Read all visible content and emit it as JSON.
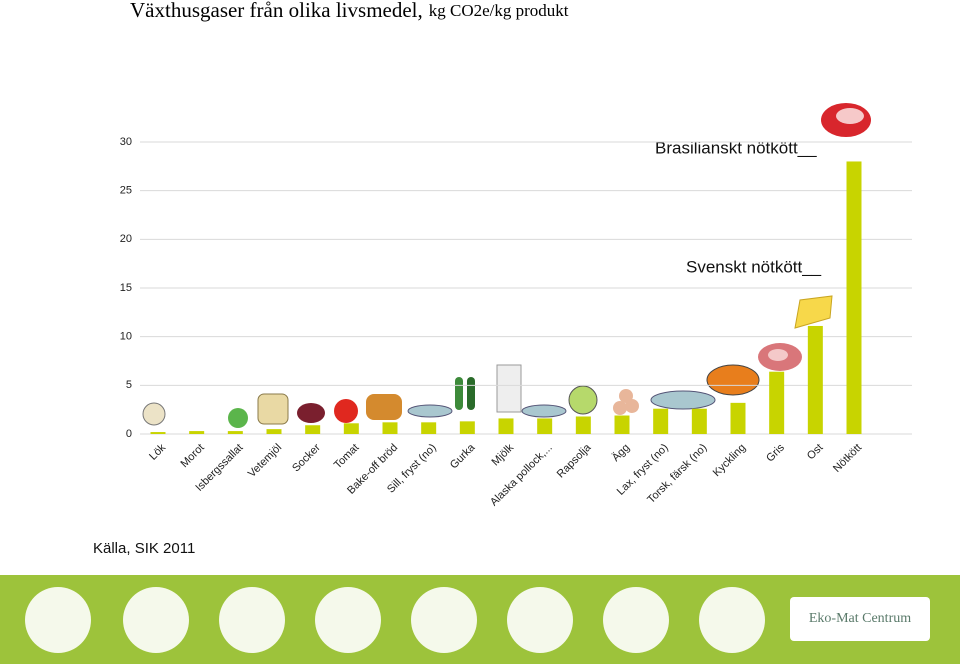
{
  "chart_data": {
    "type": "bar",
    "title": "Växthusgaser från olika livsmedel,",
    "subtitle": "kg CO2e/kg produkt",
    "categories": [
      "Lök",
      "Morot",
      "Isbergssallat",
      "Vetemjöl",
      "Socker",
      "Tomat",
      "Bake-off bröd",
      "Sill, fryst (no)",
      "Gurka",
      "Mjölk",
      "Alaska pollock,...",
      "Rapsolja",
      "Ägg",
      "Lax, fryst (no)",
      "Torsk, färsk (no)",
      "Kyckling",
      "Gris",
      "Ost",
      "Nötkött"
    ],
    "values": [
      0.2,
      0.3,
      0.3,
      0.5,
      0.9,
      1.1,
      1.2,
      1.2,
      1.3,
      1.6,
      1.6,
      1.8,
      1.9,
      2.6,
      2.6,
      3.2,
      6.4,
      11.1,
      28
    ],
    "color": "#c8d400",
    "ylim": [
      0,
      30
    ],
    "yticks": [
      0,
      5,
      10,
      15,
      20,
      25,
      30
    ],
    "grid": true,
    "annotations": [
      "Brasilianskt nötkött__",
      "Svenskt nötkött__"
    ],
    "source": "Källa, SIK 2011"
  },
  "footer": {
    "logo": "Eko-Mat Centrum"
  }
}
